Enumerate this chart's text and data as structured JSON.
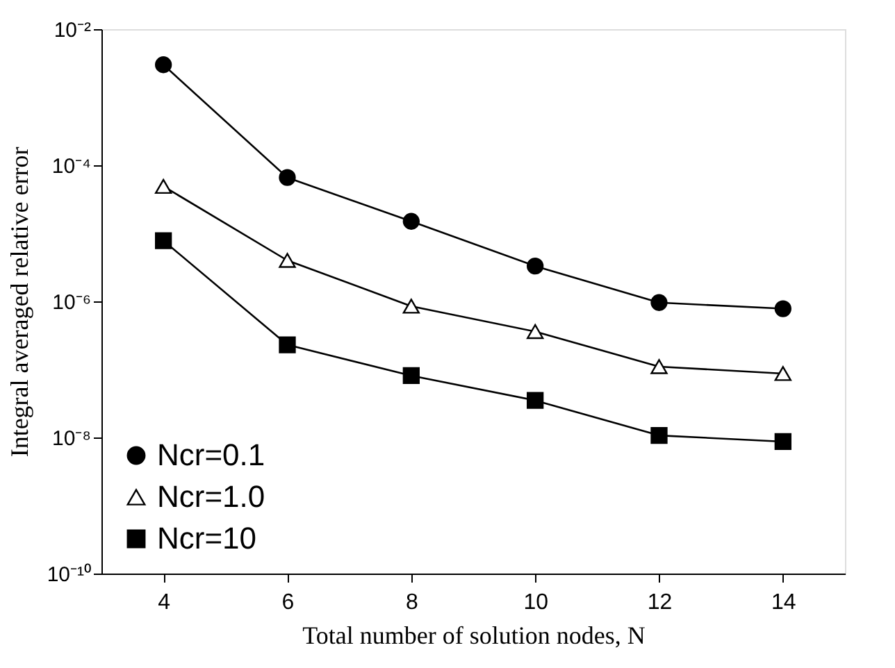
{
  "chart_data": {
    "type": "line",
    "xlabel": "Total number of solution nodes, N",
    "ylabel": "Integral averaged relative error",
    "x": [
      4,
      6,
      8,
      10,
      12,
      14
    ],
    "series": [
      {
        "name": "Ncr=0.1",
        "color": "#000000",
        "marker": "circle",
        "values": [
          0.003,
          6.6e-05,
          1.5e-05,
          3.3e-06,
          9.6e-07,
          7.8e-07
        ]
      },
      {
        "name": "Ncr=1.0",
        "color": "#000000",
        "marker": "triangle",
        "values": [
          4.9e-05,
          4e-06,
          8.5e-07,
          3.6e-07,
          1.1e-07,
          8.7e-08
        ]
      },
      {
        "name": "Ncr=10",
        "color": "#000000",
        "marker": "square",
        "values": [
          7.8e-06,
          2.3e-07,
          8.1e-08,
          3.5e-08,
          1.07e-08,
          8.7e-09
        ]
      }
    ],
    "log": "y",
    "xlim": [
      3,
      15
    ],
    "xticks": [
      4,
      6,
      8,
      10,
      12,
      14
    ],
    "ylim": [
      1e-10,
      0.01
    ],
    "yticks": [
      {
        "value": 1e-10,
        "label": "10⁻¹⁰"
      },
      {
        "value": 1e-08,
        "label": "10⁻⁸"
      },
      {
        "value": 1e-06,
        "label": "10⁻⁶"
      },
      {
        "value": 0.0001,
        "label": "10⁻⁴"
      },
      {
        "value": 0.01,
        "label": "10⁻²"
      }
    ],
    "grid": false,
    "legend": "bottom left",
    "line_style": "solid"
  }
}
